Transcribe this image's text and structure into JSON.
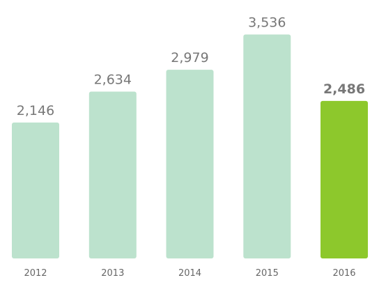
{
  "chart_data": {
    "type": "bar",
    "title": "",
    "xlabel": "",
    "ylabel": "",
    "categories": [
      "2012",
      "2013",
      "2014",
      "2015",
      "2016"
    ],
    "values": [
      2146,
      2634,
      2979,
      3536,
      2486
    ],
    "value_labels": [
      "2,146",
      "2,634",
      "2,979",
      "3,536",
      "2,486"
    ],
    "highlighted_category": "2016",
    "ylim": [
      0,
      3750
    ],
    "grid": false,
    "legend": "none",
    "colors": {
      "bar": "#bce2cd",
      "highlight": "#8dc82c",
      "value_text": "#777777",
      "tick_text": "#666666"
    }
  }
}
